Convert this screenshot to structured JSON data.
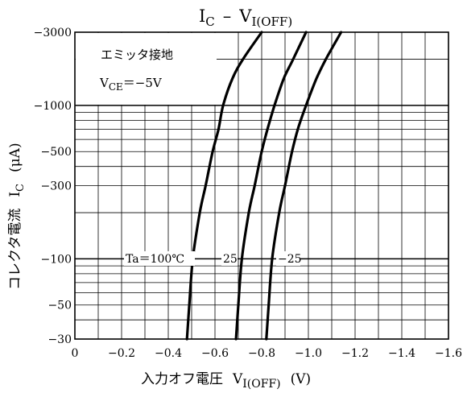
{
  "chart_data": {
    "type": "line",
    "title_main": "I",
    "title_main_sub": "C",
    "title_dash": "–",
    "title_second": "V",
    "title_second_sub": "I(OFF)",
    "x_axis_label": "入力オフ電圧",
    "x_axis_symbol": "V",
    "x_axis_symbol_sub": "I(OFF)",
    "x_axis_unit": "(V)",
    "y_axis_label": "コレクタ電流",
    "y_axis_symbol": "I",
    "y_axis_symbol_sub": "C",
    "y_axis_unit": "(μA)",
    "x_scale": "linear",
    "y_scale": "log",
    "xlim": [
      0,
      -1.6
    ],
    "ylim": [
      -30,
      -3000
    ],
    "x_ticks": [
      {
        "value": 0,
        "label": "0"
      },
      {
        "value": -0.2,
        "label": "−0.2"
      },
      {
        "value": -0.4,
        "label": "−0.4"
      },
      {
        "value": -0.6,
        "label": "−0.6"
      },
      {
        "value": -0.8,
        "label": "−0.8"
      },
      {
        "value": -1.0,
        "label": "−1.0"
      },
      {
        "value": -1.2,
        "label": "−1.2"
      },
      {
        "value": -1.4,
        "label": "−1.4"
      },
      {
        "value": -1.6,
        "label": "−1.6"
      }
    ],
    "y_ticks": [
      {
        "value": -30,
        "label": "−30"
      },
      {
        "value": -50,
        "label": "−50"
      },
      {
        "value": -100,
        "label": "−100"
      },
      {
        "value": -300,
        "label": "−300"
      },
      {
        "value": -500,
        "label": "−500"
      },
      {
        "value": -1000,
        "label": "−1000"
      },
      {
        "value": -3000,
        "label": "−3000"
      }
    ],
    "grid": true,
    "legend_box": {
      "line1": "エミッタ接地",
      "line2_symbol": "V",
      "line2_sub": "CE",
      "line2_value": "＝−5V"
    },
    "series": [
      {
        "name": "Ta＝100℃",
        "points": [
          {
            "x": -0.48,
            "y": -30
          },
          {
            "x": -0.49,
            "y": -50
          },
          {
            "x": -0.505,
            "y": -100
          },
          {
            "x": -0.535,
            "y": -200
          },
          {
            "x": -0.56,
            "y": -300
          },
          {
            "x": -0.59,
            "y": -500
          },
          {
            "x": -0.615,
            "y": -700
          },
          {
            "x": -0.635,
            "y": -1000
          },
          {
            "x": -0.675,
            "y": -1500
          },
          {
            "x": -0.72,
            "y": -2000
          },
          {
            "x": -0.8,
            "y": -3000
          }
        ]
      },
      {
        "name": "25",
        "points": [
          {
            "x": -0.69,
            "y": -30
          },
          {
            "x": -0.7,
            "y": -50
          },
          {
            "x": -0.715,
            "y": -100
          },
          {
            "x": -0.745,
            "y": -200
          },
          {
            "x": -0.77,
            "y": -300
          },
          {
            "x": -0.8,
            "y": -500
          },
          {
            "x": -0.825,
            "y": -700
          },
          {
            "x": -0.855,
            "y": -1000
          },
          {
            "x": -0.895,
            "y": -1500
          },
          {
            "x": -0.935,
            "y": -2000
          },
          {
            "x": -0.99,
            "y": -3000
          }
        ]
      },
      {
        "name": "−25",
        "points": [
          {
            "x": -0.82,
            "y": -30
          },
          {
            "x": -0.83,
            "y": -50
          },
          {
            "x": -0.845,
            "y": -100
          },
          {
            "x": -0.875,
            "y": -200
          },
          {
            "x": -0.9,
            "y": -300
          },
          {
            "x": -0.93,
            "y": -500
          },
          {
            "x": -0.955,
            "y": -700
          },
          {
            "x": -0.99,
            "y": -1000
          },
          {
            "x": -1.035,
            "y": -1500
          },
          {
            "x": -1.075,
            "y": -2000
          },
          {
            "x": -1.14,
            "y": -3000
          }
        ]
      }
    ]
  }
}
